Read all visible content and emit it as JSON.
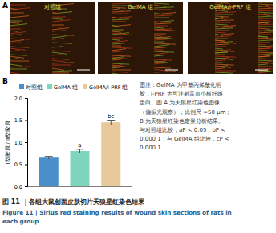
{
  "chart_data": {
    "type": "bar",
    "categories": [
      "对照组",
      "GelMA 组",
      "GelMA/i-PRF 组"
    ],
    "values": [
      0.65,
      0.8,
      1.45
    ],
    "errors": [
      0.03,
      0.04,
      0.05
    ],
    "colors": [
      "#4a8fc9",
      "#7fd6bd",
      "#e8c99a"
    ],
    "y_label": "Ⅰ型胶原 / Ⅲ型胶原",
    "ylim": [
      0,
      2
    ],
    "yticks": [
      {
        "value": 0,
        "label": "0.0"
      },
      {
        "value": 0.5,
        "label": "0.5"
      },
      {
        "value": 1,
        "label": "1.0"
      },
      {
        "value": 1.5,
        "label": "1.5"
      },
      {
        "value": 2,
        "label": "2.0"
      }
    ],
    "annotations": [
      {
        "index": 1,
        "text": "a"
      },
      {
        "index": 2,
        "text": "bc"
      }
    ],
    "legend": "top",
    "tick_labels": "y",
    "grid": false
  },
  "figure": {
    "panel_a": "A",
    "panel_b": "B",
    "image_labels": [
      "对照组",
      "GelMA 组",
      "GelMA/i-PRF 组"
    ],
    "note_lines": [
      "图注：GelMA 为甲基丙烯酰化明",
      "胶，i-PRF 为可注射富血小板纤维",
      "蛋白。图 A 为天狼星红染色图像",
      "（偏振光观察），比例尺 =50 μm；",
      "B 为天狼星红染色定量分析结果。",
      "与对照组比较，aP < 0.05，bP <",
      "0.000 1；与 GelMA 组比较，cP <",
      "0.000 1"
    ],
    "caption_cn": "图 11 ｜各组大鼠创面皮肤切片天狼星红染色结果",
    "caption_en": [
      "Figure 11  |  Sirius red staining results of wound skin sections of rats in",
      "each group"
    ]
  }
}
